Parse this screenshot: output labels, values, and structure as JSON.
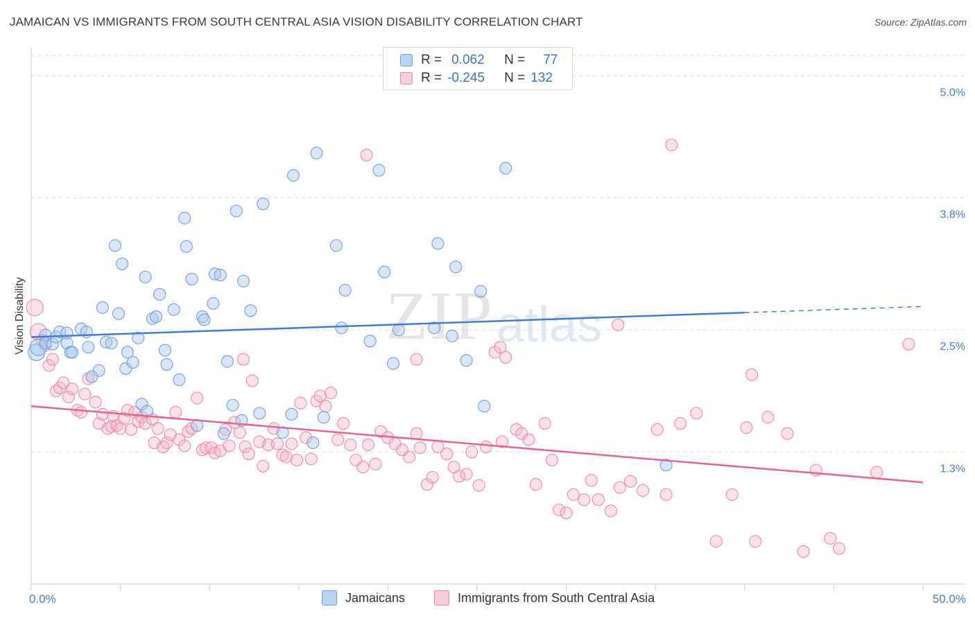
{
  "title": "JAMAICAN VS IMMIGRANTS FROM SOUTH CENTRAL ASIA VISION DISABILITY CORRELATION CHART",
  "source": "Source: ZipAtlas.com",
  "watermark": {
    "zip": "ZIP",
    "atlas": "atlas"
  },
  "legend": {
    "rows": [
      {
        "r_label": "R =",
        "r_value": "0.062",
        "n_label": "N =",
        "n_value": "77"
      },
      {
        "r_label": "R =",
        "r_value": "-0.245",
        "n_label": "N =",
        "n_value": "132"
      }
    ],
    "bottom": [
      "Jamaicans",
      "Immigrants from South Central Asia"
    ]
  },
  "colors": {
    "blue": "#3d7fd4",
    "blue_fill": "#a9c8f0",
    "pink": "#e8638f",
    "pink_fill": "#f5b3c8",
    "grid": "#dcdcdc",
    "tick_text": "#4a7bc8"
  },
  "chart_data": {
    "type": "scatter",
    "xlabel": "",
    "ylabel": "Vision Disability",
    "xlim": [
      0,
      50
    ],
    "ylim": [
      0,
      5.2
    ],
    "x_tick_labels": [
      "0.0%",
      "50.0%"
    ],
    "y_ticks": [
      1.3,
      2.5,
      3.8,
      5.0
    ],
    "y_tick_labels": [
      "1.3%",
      "2.5%",
      "3.8%",
      "5.0%"
    ],
    "grid": true,
    "series": [
      {
        "name": "Jamaicans",
        "color": "#3d7fd4",
        "trend": {
          "x0": 0,
          "y0": 2.43,
          "x1": 40,
          "y1": 2.67,
          "dash_to_x": 50,
          "dash_to_y": 2.73
        },
        "points": [
          [
            0.3,
            2.28
          ],
          [
            0.4,
            2.33
          ],
          [
            0.8,
            2.45
          ],
          [
            0.8,
            2.37
          ],
          [
            1.2,
            2.36
          ],
          [
            1.4,
            2.43
          ],
          [
            1.6,
            2.48
          ],
          [
            2.0,
            2.37
          ],
          [
            2.0,
            2.47
          ],
          [
            2.2,
            2.28
          ],
          [
            2.3,
            2.28
          ],
          [
            2.8,
            2.51
          ],
          [
            3.1,
            2.48
          ],
          [
            3.2,
            2.33
          ],
          [
            3.4,
            2.04
          ],
          [
            3.8,
            2.1
          ],
          [
            4.0,
            2.72
          ],
          [
            4.2,
            2.38
          ],
          [
            4.5,
            2.37
          ],
          [
            4.7,
            3.33
          ],
          [
            4.9,
            2.66
          ],
          [
            5.1,
            3.15
          ],
          [
            5.3,
            2.12
          ],
          [
            5.4,
            2.28
          ],
          [
            5.7,
            2.18
          ],
          [
            6.0,
            2.42
          ],
          [
            6.2,
            1.77
          ],
          [
            6.4,
            3.02
          ],
          [
            6.5,
            1.7
          ],
          [
            6.8,
            2.61
          ],
          [
            7.0,
            2.63
          ],
          [
            7.2,
            2.85
          ],
          [
            7.5,
            2.3
          ],
          [
            7.6,
            2.16
          ],
          [
            8.0,
            2.7
          ],
          [
            8.3,
            2.01
          ],
          [
            8.6,
            3.6
          ],
          [
            8.7,
            3.32
          ],
          [
            9.0,
            3.0
          ],
          [
            9.3,
            1.56
          ],
          [
            9.6,
            2.63
          ],
          [
            9.7,
            2.6
          ],
          [
            10.2,
            2.76
          ],
          [
            10.3,
            3.05
          ],
          [
            10.6,
            3.04
          ],
          [
            10.8,
            1.48
          ],
          [
            11.0,
            2.19
          ],
          [
            11.3,
            1.76
          ],
          [
            11.5,
            3.67
          ],
          [
            11.8,
            1.61
          ],
          [
            11.9,
            2.98
          ],
          [
            12.3,
            2.69
          ],
          [
            12.8,
            1.68
          ],
          [
            13.0,
            3.74
          ],
          [
            14.1,
            1.49
          ],
          [
            14.6,
            1.67
          ],
          [
            14.7,
            4.02
          ],
          [
            15.8,
            1.39
          ],
          [
            16.0,
            4.24
          ],
          [
            16.4,
            1.64
          ],
          [
            17.1,
            3.33
          ],
          [
            17.4,
            2.52
          ],
          [
            17.6,
            2.89
          ],
          [
            19.0,
            2.39
          ],
          [
            19.5,
            4.07
          ],
          [
            19.8,
            3.07
          ],
          [
            20.3,
            2.17
          ],
          [
            20.6,
            2.5
          ],
          [
            22.6,
            2.52
          ],
          [
            22.8,
            3.35
          ],
          [
            23.6,
            2.44
          ],
          [
            23.8,
            3.12
          ],
          [
            24.4,
            2.2
          ],
          [
            25.2,
            2.88
          ],
          [
            25.4,
            1.75
          ],
          [
            26.6,
            4.09
          ],
          [
            35.6,
            1.17
          ]
        ]
      },
      {
        "name": "Immigrants from South Central Asia",
        "color": "#e8638f",
        "trend": {
          "x0": 0,
          "y0": 1.75,
          "x1": 50,
          "y1": 1.0
        },
        "points": [
          [
            0.2,
            2.72
          ],
          [
            0.4,
            2.48
          ],
          [
            0.6,
            2.4
          ],
          [
            0.8,
            2.35
          ],
          [
            1.0,
            2.15
          ],
          [
            1.2,
            2.21
          ],
          [
            1.4,
            1.9
          ],
          [
            1.6,
            1.93
          ],
          [
            1.8,
            1.98
          ],
          [
            2.1,
            1.84
          ],
          [
            2.3,
            1.92
          ],
          [
            2.6,
            1.71
          ],
          [
            2.8,
            1.69
          ],
          [
            3.0,
            1.87
          ],
          [
            3.2,
            2.02
          ],
          [
            3.6,
            1.79
          ],
          [
            3.8,
            1.58
          ],
          [
            4.0,
            1.67
          ],
          [
            4.3,
            1.53
          ],
          [
            4.5,
            1.55
          ],
          [
            4.6,
            1.65
          ],
          [
            4.8,
            1.56
          ],
          [
            5.0,
            1.53
          ],
          [
            5.2,
            1.63
          ],
          [
            5.4,
            1.71
          ],
          [
            5.6,
            1.52
          ],
          [
            5.8,
            1.69
          ],
          [
            6.0,
            1.6
          ],
          [
            6.2,
            1.64
          ],
          [
            6.4,
            1.58
          ],
          [
            6.8,
            1.62
          ],
          [
            6.9,
            1.39
          ],
          [
            7.1,
            1.53
          ],
          [
            7.4,
            1.35
          ],
          [
            7.6,
            1.39
          ],
          [
            7.8,
            1.47
          ],
          [
            8.1,
            1.69
          ],
          [
            8.3,
            1.42
          ],
          [
            8.6,
            1.36
          ],
          [
            8.8,
            1.5
          ],
          [
            9.0,
            1.53
          ],
          [
            9.3,
            1.83
          ],
          [
            9.6,
            1.32
          ],
          [
            9.8,
            1.34
          ],
          [
            10.1,
            1.34
          ],
          [
            10.3,
            1.29
          ],
          [
            10.6,
            1.31
          ],
          [
            10.9,
            1.52
          ],
          [
            11.1,
            1.36
          ],
          [
            11.4,
            1.59
          ],
          [
            11.7,
            1.49
          ],
          [
            11.9,
            2.21
          ],
          [
            12.0,
            1.35
          ],
          [
            12.2,
            1.28
          ],
          [
            12.4,
            2.0
          ],
          [
            12.8,
            1.4
          ],
          [
            13.0,
            1.16
          ],
          [
            13.3,
            1.37
          ],
          [
            13.6,
            1.53
          ],
          [
            13.8,
            1.38
          ],
          [
            14.1,
            1.27
          ],
          [
            14.3,
            1.25
          ],
          [
            14.6,
            1.38
          ],
          [
            14.9,
            1.22
          ],
          [
            15.1,
            1.78
          ],
          [
            15.4,
            1.44
          ],
          [
            15.7,
            1.23
          ],
          [
            16.0,
            1.8
          ],
          [
            16.2,
            1.85
          ],
          [
            16.5,
            1.75
          ],
          [
            16.8,
            1.88
          ],
          [
            17.2,
            1.42
          ],
          [
            17.5,
            1.58
          ],
          [
            17.9,
            1.37
          ],
          [
            18.2,
            1.22
          ],
          [
            18.6,
            1.15
          ],
          [
            18.9,
            1.37
          ],
          [
            19.3,
            1.18
          ],
          [
            19.6,
            1.5
          ],
          [
            20.0,
            1.44
          ],
          [
            20.4,
            1.38
          ],
          [
            20.8,
            1.32
          ],
          [
            21.2,
            1.25
          ],
          [
            21.6,
            1.48
          ],
          [
            21.8,
            1.34
          ],
          [
            22.2,
            0.98
          ],
          [
            22.5,
            1.05
          ],
          [
            22.8,
            1.35
          ],
          [
            23.3,
            1.28
          ],
          [
            23.7,
            1.15
          ],
          [
            24.0,
            1.06
          ],
          [
            24.4,
            1.08
          ],
          [
            24.7,
            1.3
          ],
          [
            25.1,
            0.97
          ],
          [
            25.5,
            1.35
          ],
          [
            26.0,
            2.28
          ],
          [
            26.4,
            1.4
          ],
          [
            26.6,
            2.23
          ],
          [
            27.2,
            1.52
          ],
          [
            27.5,
            1.48
          ],
          [
            27.9,
            1.42
          ],
          [
            28.3,
            0.98
          ],
          [
            28.8,
            1.58
          ],
          [
            29.2,
            1.22
          ],
          [
            29.6,
            0.73
          ],
          [
            30.0,
            0.7
          ],
          [
            30.4,
            0.88
          ],
          [
            31.0,
            0.83
          ],
          [
            31.4,
            1.02
          ],
          [
            31.8,
            0.83
          ],
          [
            32.5,
            0.72
          ],
          [
            33.0,
            0.95
          ],
          [
            33.6,
            1.01
          ],
          [
            34.3,
            0.92
          ],
          [
            35.1,
            1.52
          ],
          [
            35.6,
            0.88
          ],
          [
            36.4,
            1.58
          ],
          [
            37.3,
            1.68
          ],
          [
            38.4,
            0.42
          ],
          [
            39.3,
            0.88
          ],
          [
            40.1,
            1.54
          ],
          [
            40.6,
            0.42
          ],
          [
            41.3,
            1.64
          ],
          [
            42.4,
            1.48
          ],
          [
            43.3,
            0.32
          ],
          [
            44.0,
            1.12
          ],
          [
            44.8,
            0.45
          ],
          [
            45.3,
            0.35
          ],
          [
            47.4,
            1.1
          ],
          [
            49.2,
            2.36
          ],
          [
            21.6,
            2.21
          ],
          [
            18.8,
            4.22
          ],
          [
            35.9,
            4.32
          ],
          [
            32.9,
            2.55
          ],
          [
            26.3,
            2.33
          ],
          [
            40.4,
            2.06
          ]
        ]
      }
    ]
  }
}
